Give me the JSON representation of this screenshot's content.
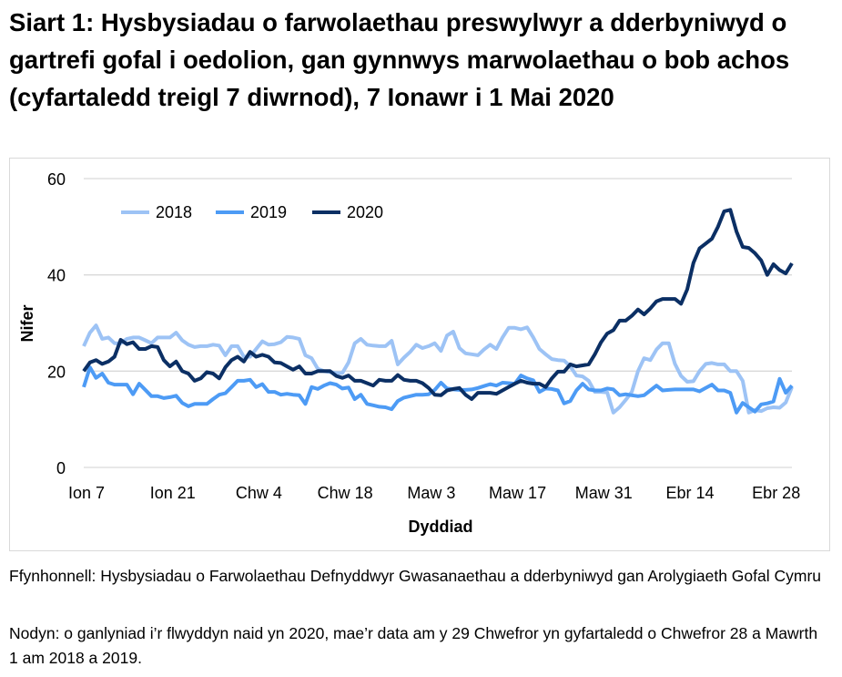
{
  "title": "Siart 1: Hysbysiadau o farwolaethau preswylwyr a dderbyniwyd o gartrefi gofal i oedolion, gan gynnwys marwolaethau o bob achos (cyfartaledd treigl 7 diwrnod), 7 Ionawr i 1 Mai 2020",
  "source": "Ffynhonnell: Hysbysiadau o Farwolaethau Defnyddwyr Gwasanaethau a dderbyniwyd gan Arolygiaeth Gofal Cymru",
  "note": "Nodyn: o ganlyniad i’r flwyddyn naid yn 2020, mae’r data am y 29 Chwefror yn gyfartaledd o Chwefror 28 a Mawrth 1 am 2018 a 2019.",
  "chart_data": {
    "type": "line",
    "xlabel": "Dyddiad",
    "ylabel": "Nifer",
    "ylim": [
      0,
      60
    ],
    "yticks": [
      0,
      20,
      40,
      60
    ],
    "grid": true,
    "legend_position": "top-left",
    "x_start": "7 Ionawr",
    "x_end": "1 Mai",
    "xtick_labels": [
      {
        "label": "Ion 7",
        "day": 0
      },
      {
        "label": "Ion 21",
        "day": 14
      },
      {
        "label": "Chw 4",
        "day": 28
      },
      {
        "label": "Chw 18",
        "day": 42
      },
      {
        "label": "Maw 3",
        "day": 56
      },
      {
        "label": "Maw 17",
        "day": 70
      },
      {
        "label": "Maw 31",
        "day": 84
      },
      {
        "label": "Ebr 14",
        "day": 98
      },
      {
        "label": "Ebr 28",
        "day": 112
      }
    ],
    "series": [
      {
        "name": "2018",
        "color": "#9DC3F5",
        "values": [
          25.2,
          28,
          29.5,
          26.7,
          27,
          25.8,
          25.8,
          26.7,
          27,
          27,
          26.4,
          25.8,
          27,
          27,
          27,
          28,
          26.4,
          25.5,
          25,
          25.2,
          25.2,
          25.5,
          25.3,
          23.3,
          25.2,
          25.2,
          23,
          23,
          24.6,
          26.2,
          25.5,
          25.6,
          26,
          27.1,
          27,
          26.7,
          23.3,
          22.7,
          20.5,
          20,
          19.8,
          19.6,
          19.6,
          21.8,
          25.8,
          26.7,
          25.5,
          25.3,
          25.2,
          25.2,
          26.3,
          21.4,
          22.8,
          24,
          25.5,
          24.8,
          25.2,
          25.8,
          24.2,
          27.4,
          28.2,
          24.8,
          23.7,
          23.5,
          23.3,
          24.5,
          25.5,
          24.6,
          27,
          29,
          29,
          28.7,
          29.1,
          27,
          24.6,
          23.5,
          22.5,
          22.3,
          22.2,
          21,
          19.1,
          18.9,
          18,
          15.7,
          15.7,
          15.6,
          11.4,
          12.5,
          14,
          15.7,
          20,
          22.7,
          22.3,
          24.5,
          25.8,
          25.8,
          21.5,
          19,
          17.8,
          17.9,
          20,
          21.5,
          21.7,
          21.4,
          21.4,
          20,
          20,
          18,
          11.4,
          11.9,
          11.7,
          12.3,
          12.5,
          12.4,
          13.5,
          16.7
        ]
      },
      {
        "name": "2019",
        "color": "#4D9BF5",
        "values": [
          16.7,
          20.8,
          18.6,
          19.5,
          17.6,
          17.2,
          17.2,
          17.2,
          15.2,
          17.4,
          16.1,
          14.8,
          14.8,
          14.4,
          14.6,
          14.9,
          13.4,
          12.7,
          13.2,
          13.2,
          13.2,
          14.2,
          15.1,
          15.4,
          16.7,
          18,
          18,
          18.2,
          16.7,
          17.3,
          15.7,
          15.7,
          15.1,
          15.3,
          15.1,
          15,
          13.2,
          16.7,
          16.3,
          17,
          17.5,
          17.2,
          16.4,
          16.6,
          14.2,
          15.1,
          13.2,
          12.9,
          12.6,
          12.5,
          12.1,
          13.8,
          14.5,
          14.8,
          15.1,
          15.1,
          15.2,
          16.1,
          17.6,
          16.4,
          16.2,
          16.1,
          16.1,
          16.2,
          16.5,
          16.9,
          17.3,
          17,
          17.6,
          17.5,
          17.4,
          19.1,
          18.5,
          18.1,
          15.7,
          16.4,
          16.3,
          16,
          13.3,
          13.8,
          16,
          17.4,
          16.2,
          16,
          16,
          16.4,
          16.2,
          15,
          15.2,
          15,
          14.8,
          15,
          16,
          17,
          16,
          16.1,
          16.2,
          16.2,
          16.2,
          16.2,
          15.8,
          16.5,
          17.2,
          16,
          16,
          15.5,
          11.4,
          13.4,
          12.5,
          11.6,
          13.1,
          13.3,
          13.7,
          18.4,
          15.5,
          17
        ]
      },
      {
        "name": "2020",
        "color": "#0B2F64",
        "values": [
          20,
          21.8,
          22.3,
          21.5,
          22,
          23,
          26.5,
          25.6,
          26,
          24.6,
          24.6,
          25.2,
          25,
          22.3,
          21,
          22,
          20,
          19.5,
          18,
          18.5,
          19.8,
          19.5,
          18.5,
          20.8,
          22.3,
          23,
          22,
          24,
          23,
          23.4,
          23,
          21.8,
          21.7,
          21,
          20.3,
          21,
          19.5,
          19.5,
          20,
          20,
          20,
          19,
          18.6,
          19.1,
          18,
          18,
          17.5,
          17,
          18.2,
          18,
          18,
          19.2,
          18.2,
          18,
          18,
          17.5,
          16.5,
          15.1,
          15,
          16,
          16.3,
          16.5,
          15.1,
          14.2,
          15.5,
          15.5,
          15.5,
          15.3,
          16,
          16.7,
          17.4,
          18,
          17.6,
          17.4,
          17.4,
          16.7,
          18.5,
          19.9,
          19.9,
          21.4,
          21,
          21.2,
          21.4,
          23.5,
          26,
          27.8,
          28.5,
          30.5,
          30.5,
          31.5,
          32.8,
          31.8,
          33,
          34.5,
          35,
          35,
          35,
          34,
          37,
          42.5,
          45.5,
          46.5,
          47.5,
          50,
          53.2,
          53.5,
          49,
          45.8,
          45.6,
          44.5,
          43,
          40,
          42.2,
          41,
          40.3,
          42.4
        ]
      }
    ]
  }
}
